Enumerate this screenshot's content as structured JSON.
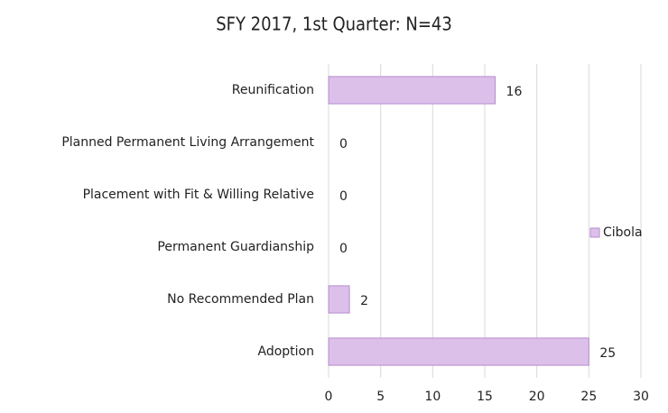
{
  "chart_data": {
    "type": "bar",
    "orientation": "horizontal",
    "title": "SFY 2017, 1st Quarter:  N=43",
    "categories": [
      "Reunification",
      "Planned Permanent Living Arrangement",
      "Placement with Fit & Willing Relative",
      "Permanent Guardianship",
      "No Recommended Plan",
      "Adoption"
    ],
    "series": [
      {
        "name": "Cibola",
        "color": "#dcc0ea",
        "values": [
          16,
          0,
          0,
          0,
          2,
          25
        ]
      }
    ],
    "xlim": [
      0,
      30
    ],
    "xticks": [
      0,
      5,
      10,
      15,
      20,
      25,
      30
    ],
    "grid": true,
    "legend": "right"
  }
}
